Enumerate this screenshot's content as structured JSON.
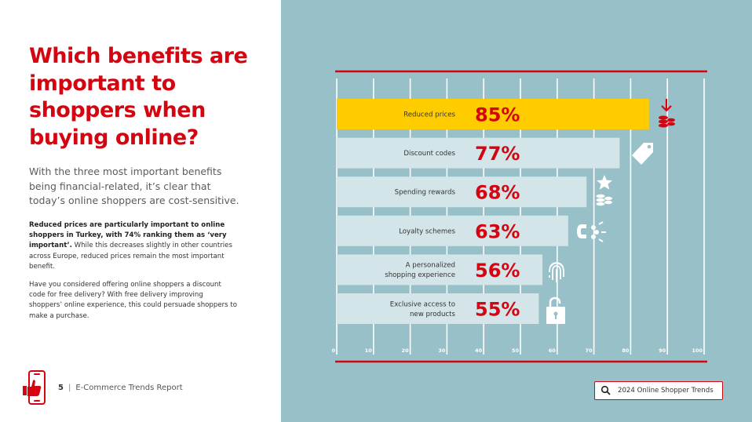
{
  "left": {
    "title": "Which benefits are important to shoppers when buying online?",
    "intro": "With the three most important benefits being financial-related, it’s clear that today’s online shoppers are cost-sensitive.",
    "para1_bold": "Reduced prices are particularly important to online shoppers in Turkey, with 74%  ranking them as ‘very important’.",
    "para1_rest": " While this decreases slightly in other countries across Europe, reduced prices remain the most important benefit.",
    "para2": "Have you considered offering online shoppers a discount code for free delivery? With free delivery improving shoppers’ online experience, this could persuade shoppers to make a purchase."
  },
  "footer": {
    "page_number": "5",
    "separator": "|",
    "report_title": "E-Commerce Trends Report"
  },
  "search": {
    "label": "2024 Online Shopper Trends",
    "icon": "search-icon"
  },
  "colors": {
    "brand_red": "#d40511",
    "highlight_yellow": "#ffcc00",
    "bar_light": "#d3e5e8",
    "panel_teal": "#97c0c8"
  },
  "chart_data": {
    "type": "bar",
    "orientation": "horizontal",
    "categories": [
      "Reduced prices",
      "Discount codes",
      "Spending rewards",
      "Loyalty schemes",
      "A personalized shopping experience",
      "Exclusive access to new products"
    ],
    "values": [
      85,
      77,
      68,
      63,
      56,
      55
    ],
    "value_labels": [
      "85%",
      "77%",
      "68%",
      "63%",
      "56%",
      "55%"
    ],
    "icons": [
      "price-drop-coins-icon",
      "price-tag-icon",
      "star-coins-icon",
      "magnet-icon",
      "fingerprint-icon",
      "unlocked-padlock-icon"
    ],
    "highlight_index": 0,
    "xlim": [
      0,
      100
    ],
    "xticks": [
      "0",
      "10",
      "20",
      "30",
      "40",
      "50",
      "60",
      "70",
      "80",
      "90",
      "100"
    ],
    "grid": true
  }
}
